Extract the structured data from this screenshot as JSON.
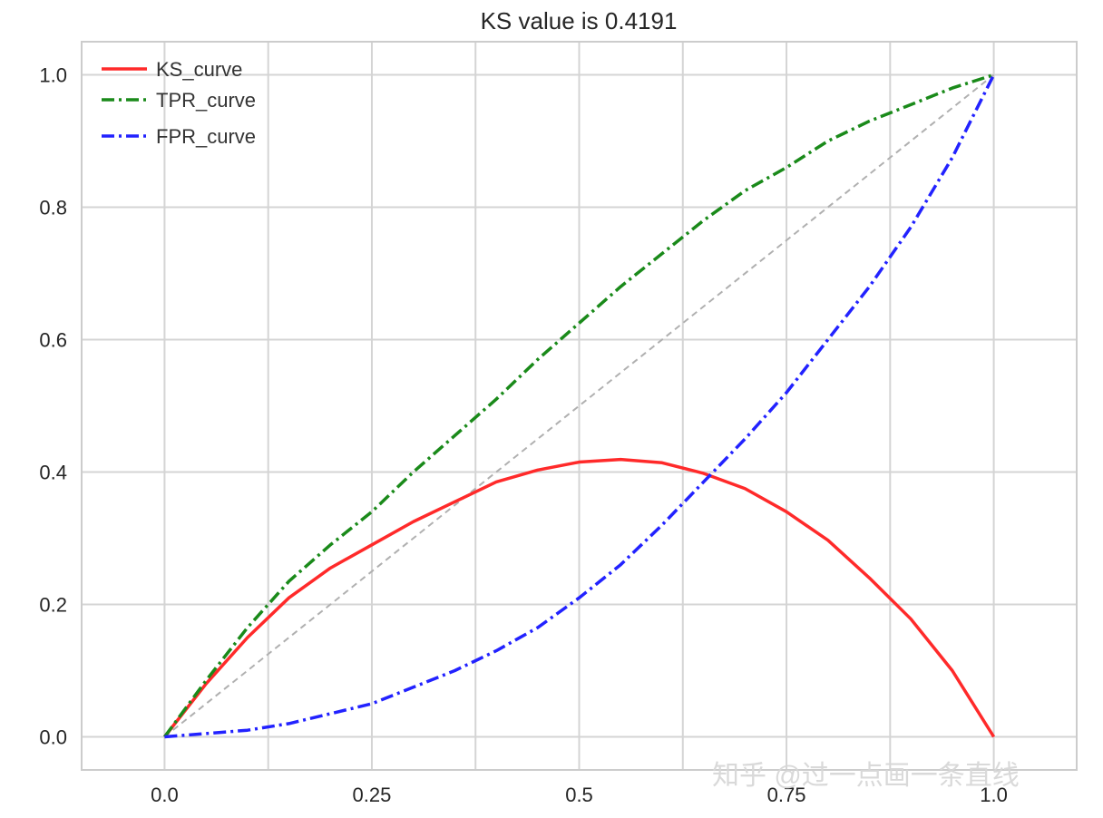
{
  "chart_data": {
    "type": "line",
    "title": "KS value is 0.4191",
    "xlabel": "",
    "ylabel": "",
    "xlim": [
      -0.1,
      1.1
    ],
    "ylim": [
      -0.05,
      1.05
    ],
    "x_ticks": [
      {
        "value": 0.0,
        "label": "0.0"
      },
      {
        "value": 0.25,
        "label": "0.25"
      },
      {
        "value": 0.5,
        "label": "0.5"
      },
      {
        "value": 0.75,
        "label": "0.75"
      },
      {
        "value": 1.0,
        "label": "1.0"
      }
    ],
    "x_grid": [
      0.0,
      0.125,
      0.25,
      0.375,
      0.5,
      0.625,
      0.75,
      0.875,
      1.0
    ],
    "y_ticks": [
      {
        "value": 0.0,
        "label": "0.0"
      },
      {
        "value": 0.2,
        "label": "0.2"
      },
      {
        "value": 0.4,
        "label": "0.4"
      },
      {
        "value": 0.6,
        "label": "0.6"
      },
      {
        "value": 0.8,
        "label": "0.8"
      },
      {
        "value": 1.0,
        "label": "1.0"
      }
    ],
    "grid": true,
    "legend_position": "top-left",
    "series": [
      {
        "name": "KS_curve",
        "color": "#ff2a2a",
        "dash": "solid",
        "points": [
          [
            0.0,
            0.0
          ],
          [
            0.05,
            0.08
          ],
          [
            0.1,
            0.15
          ],
          [
            0.15,
            0.21
          ],
          [
            0.2,
            0.255
          ],
          [
            0.25,
            0.29
          ],
          [
            0.3,
            0.325
          ],
          [
            0.35,
            0.355
          ],
          [
            0.4,
            0.385
          ],
          [
            0.45,
            0.403
          ],
          [
            0.5,
            0.415
          ],
          [
            0.55,
            0.419
          ],
          [
            0.6,
            0.414
          ],
          [
            0.65,
            0.398
          ],
          [
            0.7,
            0.375
          ],
          [
            0.75,
            0.34
          ],
          [
            0.8,
            0.297
          ],
          [
            0.85,
            0.24
          ],
          [
            0.9,
            0.178
          ],
          [
            0.95,
            0.1
          ],
          [
            1.0,
            0.0
          ]
        ]
      },
      {
        "name": "TPR_curve",
        "color": "#1a8a1a",
        "dash": "dashdot",
        "points": [
          [
            0.0,
            0.0
          ],
          [
            0.05,
            0.085
          ],
          [
            0.1,
            0.165
          ],
          [
            0.15,
            0.235
          ],
          [
            0.2,
            0.29
          ],
          [
            0.25,
            0.34
          ],
          [
            0.3,
            0.4
          ],
          [
            0.35,
            0.455
          ],
          [
            0.4,
            0.51
          ],
          [
            0.45,
            0.57
          ],
          [
            0.5,
            0.625
          ],
          [
            0.55,
            0.68
          ],
          [
            0.6,
            0.73
          ],
          [
            0.65,
            0.78
          ],
          [
            0.7,
            0.825
          ],
          [
            0.75,
            0.86
          ],
          [
            0.8,
            0.9
          ],
          [
            0.85,
            0.93
          ],
          [
            0.9,
            0.955
          ],
          [
            0.95,
            0.98
          ],
          [
            1.0,
            1.0
          ]
        ]
      },
      {
        "name": "FPR_curve",
        "color": "#2222ff",
        "dash": "dashdot",
        "points": [
          [
            0.0,
            0.0
          ],
          [
            0.05,
            0.005
          ],
          [
            0.1,
            0.01
          ],
          [
            0.15,
            0.02
          ],
          [
            0.2,
            0.035
          ],
          [
            0.25,
            0.05
          ],
          [
            0.3,
            0.075
          ],
          [
            0.35,
            0.1
          ],
          [
            0.4,
            0.13
          ],
          [
            0.45,
            0.165
          ],
          [
            0.5,
            0.21
          ],
          [
            0.55,
            0.26
          ],
          [
            0.6,
            0.32
          ],
          [
            0.65,
            0.385
          ],
          [
            0.7,
            0.45
          ],
          [
            0.75,
            0.52
          ],
          [
            0.8,
            0.6
          ],
          [
            0.85,
            0.68
          ],
          [
            0.9,
            0.77
          ],
          [
            0.95,
            0.875
          ],
          [
            1.0,
            1.0
          ]
        ]
      }
    ],
    "reference_line": {
      "color": "#b0b0b0",
      "dash": "dashed",
      "points": [
        [
          0,
          0
        ],
        [
          1,
          1
        ]
      ]
    }
  },
  "watermark": "知乎 @过一点画一条直线"
}
